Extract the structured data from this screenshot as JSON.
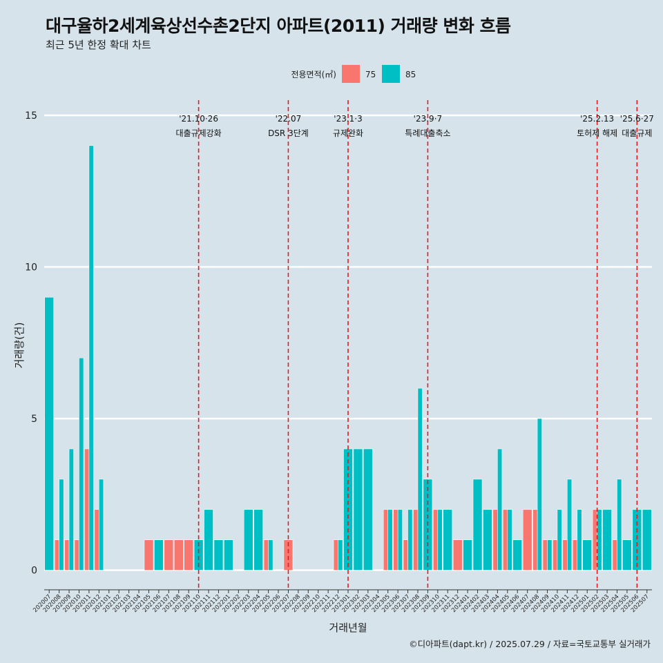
{
  "title": "대구율하2세계육상선수촌2단지 아파트(2011) 거래량 변화 흐름",
  "subtitle": "최근 5년 한정 확대 차트",
  "caption": "©디아파트(dapt.kr) / 2025.07.29 / 자료=국토교통부 실거래가",
  "colors": {
    "s75": "#f8766d",
    "s85": "#00bfc4",
    "background": "#d6e3ea",
    "grid": "#ffffff",
    "event_line": "#e41a1c"
  },
  "chart_data": {
    "type": "bar",
    "xlabel": "거래년월",
    "ylabel": "거래량(건)",
    "ylim": [
      -0.6,
      15.5
    ],
    "yticks": [
      0,
      5,
      10,
      15
    ],
    "legend_title": "전용면적(㎡)",
    "legend_position": "top",
    "categories": [
      "202007",
      "202008",
      "202009",
      "202010",
      "202011",
      "202012",
      "202101",
      "202102",
      "202103",
      "202104",
      "202105",
      "202106",
      "202107",
      "202108",
      "202109",
      "202110",
      "202111",
      "202112",
      "202201",
      "202202",
      "202203",
      "202204",
      "202205",
      "202206",
      "202207",
      "202208",
      "202209",
      "202210",
      "202211",
      "202212",
      "202301",
      "202302",
      "202303",
      "202304",
      "202305",
      "202306",
      "202307",
      "202308",
      "202309",
      "202310",
      "202311",
      "202312",
      "202401",
      "202402",
      "202403",
      "202404",
      "202405",
      "202406",
      "202407",
      "202408",
      "202409",
      "202410",
      "202411",
      "202412",
      "202501",
      "202502",
      "202503",
      "202504",
      "202505",
      "202506",
      "202507"
    ],
    "series": [
      {
        "name": "75",
        "values": [
          0,
          1,
          1,
          1,
          4,
          2,
          0,
          0,
          0,
          0,
          1,
          0,
          1,
          1,
          1,
          0,
          0,
          0,
          0,
          0,
          0,
          0,
          1,
          0,
          1,
          0,
          0,
          0,
          0,
          1,
          0,
          0,
          0,
          0,
          2,
          2,
          1,
          2,
          0,
          2,
          0,
          1,
          0,
          0,
          0,
          2,
          2,
          0,
          2,
          2,
          1,
          1,
          1,
          1,
          0,
          2,
          0,
          1,
          0,
          0,
          0
        ]
      },
      {
        "name": "85",
        "values": [
          9,
          3,
          4,
          7,
          14,
          3,
          0,
          0,
          0,
          0,
          0,
          1,
          0,
          0,
          0,
          1,
          2,
          1,
          1,
          0,
          2,
          2,
          1,
          0,
          0,
          0,
          0,
          0,
          0,
          1,
          4,
          4,
          4,
          0,
          2,
          2,
          2,
          6,
          3,
          2,
          2,
          0,
          1,
          3,
          2,
          4,
          2,
          1,
          0,
          5,
          1,
          2,
          3,
          2,
          1,
          2,
          2,
          3,
          1,
          2,
          2
        ]
      }
    ],
    "events": [
      {
        "category": "202110",
        "date": "'21.10·26",
        "label": "대출규제강화"
      },
      {
        "category": "202207",
        "date": "'22.07",
        "label": "DSR 3단계"
      },
      {
        "category": "202301",
        "date": "'23.1·3",
        "label": "규제완화"
      },
      {
        "category": "202309",
        "date": "'23.9·7",
        "label": "특례대출축소"
      },
      {
        "category": "202502",
        "date": "'25.2.13",
        "label": "토허제 해제"
      },
      {
        "category": "202506",
        "date": "'25.6·27",
        "label": "대출규제"
      }
    ]
  }
}
